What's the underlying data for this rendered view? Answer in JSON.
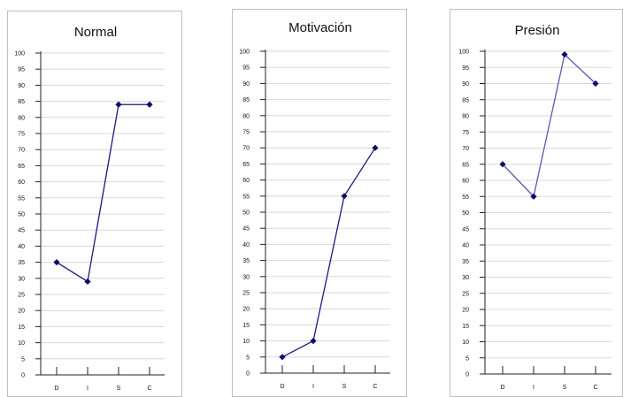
{
  "chart_data": [
    {
      "type": "line",
      "title": "Normal",
      "categories": [
        "D",
        "I",
        "S",
        "C"
      ],
      "series": [
        {
          "values": [
            35,
            29,
            84,
            84
          ]
        }
      ],
      "ylim": [
        0,
        100
      ],
      "ytick_step": 5,
      "grid": true,
      "color": "#1a1a80"
    },
    {
      "type": "line",
      "title": "Motivación",
      "categories": [
        "D",
        "I",
        "S",
        "C"
      ],
      "series": [
        {
          "values": [
            5,
            10,
            55,
            70
          ]
        }
      ],
      "ylim": [
        0,
        100
      ],
      "ytick_step": 5,
      "grid": true,
      "color": "#1a1a80"
    },
    {
      "type": "line",
      "title": "Presión",
      "categories": [
        "D",
        "I",
        "S",
        "C"
      ],
      "series": [
        {
          "values": [
            65,
            55,
            99,
            90
          ]
        }
      ],
      "ylim": [
        0,
        100
      ],
      "ytick_step": 5,
      "grid": true,
      "color": "#5a5ab0"
    }
  ]
}
